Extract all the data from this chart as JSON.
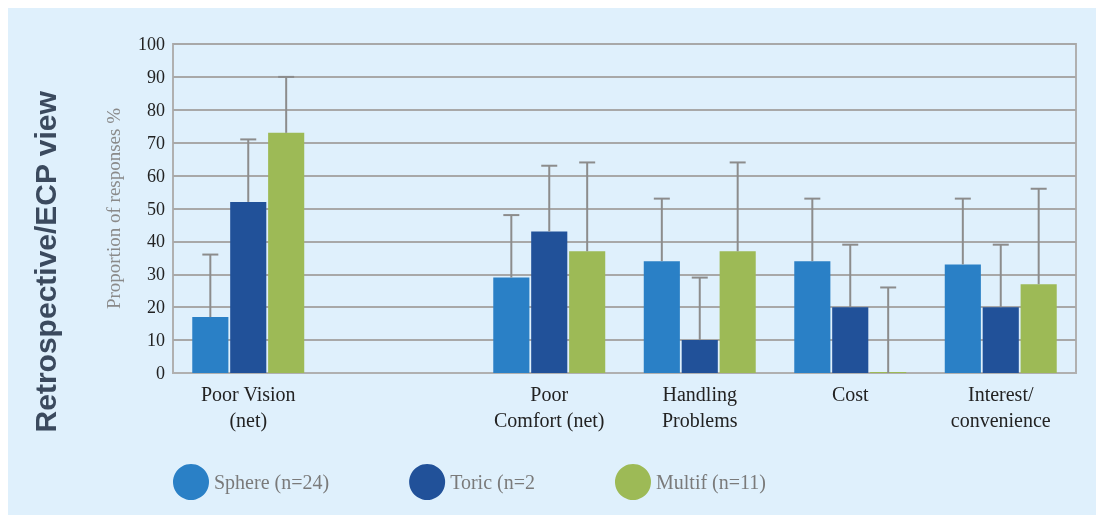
{
  "chart_data": {
    "type": "bar",
    "categories": [
      "Poor Vision\n(net)",
      null,
      "Poor\nComfort (net)",
      "Handling\nProblems",
      "Cost",
      "Interest/\nconvenience"
    ],
    "ylabel": "Proportion of responses %",
    "annotations": [
      "Retrospective/ECP view"
    ],
    "series": [
      {
        "name": "Sphere (n=24)",
        "color": "#2a80c6",
        "values": [
          17,
          null,
          29,
          34,
          34,
          33
        ],
        "errors": [
          [
            17,
            36
          ],
          null,
          [
            29,
            48
          ],
          [
            34,
            53
          ],
          [
            34,
            53
          ],
          [
            33,
            53
          ]
        ]
      },
      {
        "name": "Toric (n=2",
        "color": "#215199",
        "values": [
          52,
          null,
          43,
          10,
          20,
          20
        ],
        "errors": [
          [
            52,
            71
          ],
          null,
          [
            43,
            63
          ],
          [
            10,
            29
          ],
          [
            20,
            39
          ],
          [
            20,
            39
          ]
        ]
      },
      {
        "name": "Multif (n=11)",
        "color": "#9dba56",
        "values": [
          73,
          null,
          37,
          37,
          0,
          27
        ],
        "errors": [
          [
            73,
            90
          ],
          null,
          [
            37,
            64
          ],
          [
            37,
            64
          ],
          [
            0,
            26
          ],
          [
            27,
            56
          ]
        ]
      }
    ],
    "ylim": [
      0,
      100
    ],
    "yticks": [
      0,
      10,
      20,
      30,
      40,
      50,
      60,
      70,
      80,
      90,
      100
    ],
    "grid": "y",
    "legend": "bottom"
  }
}
